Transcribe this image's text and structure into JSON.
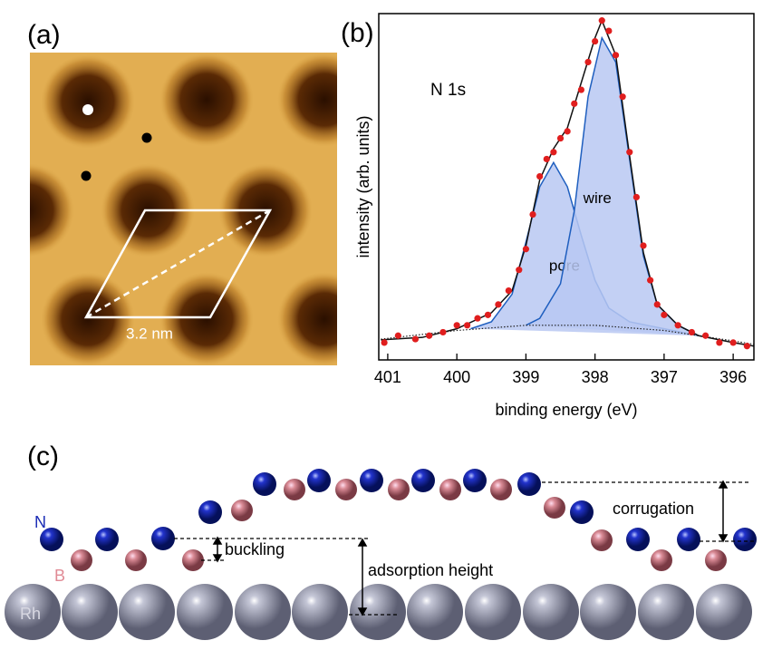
{
  "panel_a": {
    "label": "(a)",
    "scale": "3.2 nm"
  },
  "chart_data": {
    "type": "line",
    "panel_label": "(b)",
    "annotation": "N 1s",
    "x_label": "binding energy (eV)",
    "y_label": "intensity (arb. units)",
    "xlim": [
      401.13,
      395.7
    ],
    "ylim": [
      0,
      1
    ],
    "xticks": [
      401,
      400,
      399,
      398,
      397,
      396
    ],
    "series": [
      {
        "mode": "area",
        "name": "pore",
        "color": "#1f5fbf",
        "fill": "#b9c8f2",
        "x": [
          399.8,
          399.5,
          399.2,
          399.0,
          398.8,
          398.6,
          398.4,
          398.2,
          398.0,
          397.8,
          397.5,
          397.0,
          396.5
        ],
        "values": [
          0.09,
          0.11,
          0.19,
          0.34,
          0.5,
          0.57,
          0.5,
          0.36,
          0.23,
          0.15,
          0.11,
          0.09,
          0.07
        ]
      },
      {
        "mode": "area",
        "name": "wire",
        "color": "#1f5fbf",
        "fill": "#b9c8f2",
        "x": [
          399.0,
          398.8,
          398.5,
          398.3,
          398.1,
          397.9,
          397.7,
          397.5,
          397.3,
          397.1,
          396.8,
          396.5
        ],
        "values": [
          0.1,
          0.12,
          0.22,
          0.43,
          0.76,
          0.93,
          0.86,
          0.58,
          0.3,
          0.16,
          0.1,
          0.07
        ]
      },
      {
        "mode": "dotted",
        "color": "#222222",
        "x": [
          401.1,
          400.0,
          399.0,
          398.0,
          397.0,
          396.0,
          395.7
        ],
        "values": [
          0.06,
          0.085,
          0.1,
          0.1,
          0.085,
          0.055,
          0.045
        ]
      },
      {
        "mode": "line",
        "color": "#111111",
        "x": [
          401.1,
          400.5,
          400.0,
          399.5,
          399.2,
          399.0,
          398.8,
          398.6,
          398.4,
          398.2,
          398.0,
          397.9,
          397.7,
          397.5,
          397.3,
          397.1,
          396.8,
          396.5,
          396.0,
          395.7
        ],
        "values": [
          0.058,
          0.065,
          0.09,
          0.136,
          0.2,
          0.33,
          0.52,
          0.61,
          0.67,
          0.8,
          0.93,
          0.98,
          0.88,
          0.59,
          0.31,
          0.16,
          0.1,
          0.07,
          0.05,
          0.04
        ]
      },
      {
        "mode": "markers",
        "color": "#e01e1e",
        "x": [
          401.05,
          400.85,
          400.6,
          400.4,
          400.2,
          400.0,
          399.85,
          399.7,
          399.55,
          399.4,
          399.25,
          399.1,
          399.0,
          398.9,
          398.8,
          398.7,
          398.6,
          398.5,
          398.4,
          398.3,
          398.2,
          398.1,
          398.0,
          397.9,
          397.8,
          397.7,
          397.6,
          397.5,
          397.4,
          397.3,
          397.2,
          397.1,
          397.0,
          396.8,
          396.6,
          396.4,
          396.2,
          396.0,
          395.8
        ],
        "values": [
          0.05,
          0.07,
          0.06,
          0.07,
          0.08,
          0.1,
          0.1,
          0.12,
          0.13,
          0.16,
          0.2,
          0.26,
          0.32,
          0.42,
          0.53,
          0.58,
          0.6,
          0.64,
          0.66,
          0.74,
          0.78,
          0.86,
          0.92,
          0.98,
          0.95,
          0.88,
          0.76,
          0.6,
          0.47,
          0.33,
          0.23,
          0.16,
          0.13,
          0.1,
          0.08,
          0.07,
          0.05,
          0.05,
          0.04
        ]
      }
    ]
  },
  "panel_c": {
    "label": "(c)",
    "n": "N",
    "b": "B",
    "rh": "Rh",
    "buckling": "buckling",
    "adsorption": "adsorption height",
    "corrugation": "corrugation"
  }
}
